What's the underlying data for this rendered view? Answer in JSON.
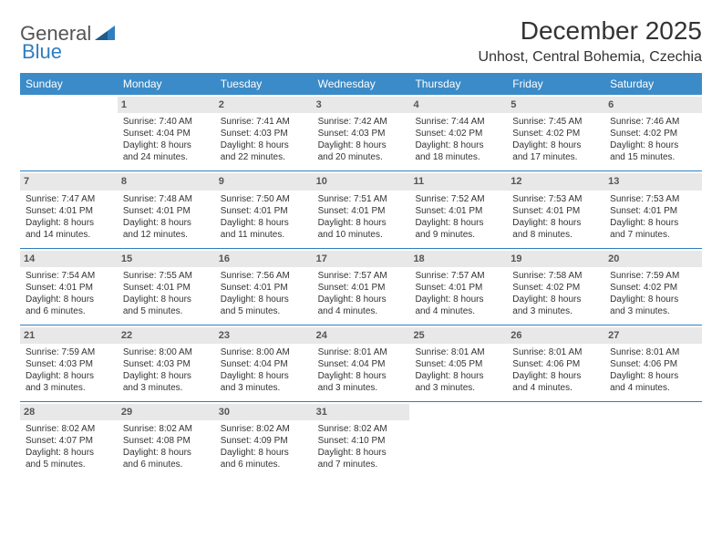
{
  "logo": {
    "text1": "General",
    "text2": "Blue"
  },
  "title": "December 2025",
  "location": "Unhost, Central Bohemia, Czechia",
  "colors": {
    "header_bg": "#3b8bc8",
    "header_text": "#ffffff",
    "daynum_bg": "#e8e8e8",
    "week_border": "#2f7ec0",
    "logo_blue": "#2f7ec0",
    "body_text": "#333333"
  },
  "day_names": [
    "Sunday",
    "Monday",
    "Tuesday",
    "Wednesday",
    "Thursday",
    "Friday",
    "Saturday"
  ],
  "weeks": [
    [
      {
        "n": "",
        "sr": "",
        "ss": "",
        "dl": ""
      },
      {
        "n": "1",
        "sr": "Sunrise: 7:40 AM",
        "ss": "Sunset: 4:04 PM",
        "dl": "Daylight: 8 hours and 24 minutes."
      },
      {
        "n": "2",
        "sr": "Sunrise: 7:41 AM",
        "ss": "Sunset: 4:03 PM",
        "dl": "Daylight: 8 hours and 22 minutes."
      },
      {
        "n": "3",
        "sr": "Sunrise: 7:42 AM",
        "ss": "Sunset: 4:03 PM",
        "dl": "Daylight: 8 hours and 20 minutes."
      },
      {
        "n": "4",
        "sr": "Sunrise: 7:44 AM",
        "ss": "Sunset: 4:02 PM",
        "dl": "Daylight: 8 hours and 18 minutes."
      },
      {
        "n": "5",
        "sr": "Sunrise: 7:45 AM",
        "ss": "Sunset: 4:02 PM",
        "dl": "Daylight: 8 hours and 17 minutes."
      },
      {
        "n": "6",
        "sr": "Sunrise: 7:46 AM",
        "ss": "Sunset: 4:02 PM",
        "dl": "Daylight: 8 hours and 15 minutes."
      }
    ],
    [
      {
        "n": "7",
        "sr": "Sunrise: 7:47 AM",
        "ss": "Sunset: 4:01 PM",
        "dl": "Daylight: 8 hours and 14 minutes."
      },
      {
        "n": "8",
        "sr": "Sunrise: 7:48 AM",
        "ss": "Sunset: 4:01 PM",
        "dl": "Daylight: 8 hours and 12 minutes."
      },
      {
        "n": "9",
        "sr": "Sunrise: 7:50 AM",
        "ss": "Sunset: 4:01 PM",
        "dl": "Daylight: 8 hours and 11 minutes."
      },
      {
        "n": "10",
        "sr": "Sunrise: 7:51 AM",
        "ss": "Sunset: 4:01 PM",
        "dl": "Daylight: 8 hours and 10 minutes."
      },
      {
        "n": "11",
        "sr": "Sunrise: 7:52 AM",
        "ss": "Sunset: 4:01 PM",
        "dl": "Daylight: 8 hours and 9 minutes."
      },
      {
        "n": "12",
        "sr": "Sunrise: 7:53 AM",
        "ss": "Sunset: 4:01 PM",
        "dl": "Daylight: 8 hours and 8 minutes."
      },
      {
        "n": "13",
        "sr": "Sunrise: 7:53 AM",
        "ss": "Sunset: 4:01 PM",
        "dl": "Daylight: 8 hours and 7 minutes."
      }
    ],
    [
      {
        "n": "14",
        "sr": "Sunrise: 7:54 AM",
        "ss": "Sunset: 4:01 PM",
        "dl": "Daylight: 8 hours and 6 minutes."
      },
      {
        "n": "15",
        "sr": "Sunrise: 7:55 AM",
        "ss": "Sunset: 4:01 PM",
        "dl": "Daylight: 8 hours and 5 minutes."
      },
      {
        "n": "16",
        "sr": "Sunrise: 7:56 AM",
        "ss": "Sunset: 4:01 PM",
        "dl": "Daylight: 8 hours and 5 minutes."
      },
      {
        "n": "17",
        "sr": "Sunrise: 7:57 AM",
        "ss": "Sunset: 4:01 PM",
        "dl": "Daylight: 8 hours and 4 minutes."
      },
      {
        "n": "18",
        "sr": "Sunrise: 7:57 AM",
        "ss": "Sunset: 4:01 PM",
        "dl": "Daylight: 8 hours and 4 minutes."
      },
      {
        "n": "19",
        "sr": "Sunrise: 7:58 AM",
        "ss": "Sunset: 4:02 PM",
        "dl": "Daylight: 8 hours and 3 minutes."
      },
      {
        "n": "20",
        "sr": "Sunrise: 7:59 AM",
        "ss": "Sunset: 4:02 PM",
        "dl": "Daylight: 8 hours and 3 minutes."
      }
    ],
    [
      {
        "n": "21",
        "sr": "Sunrise: 7:59 AM",
        "ss": "Sunset: 4:03 PM",
        "dl": "Daylight: 8 hours and 3 minutes."
      },
      {
        "n": "22",
        "sr": "Sunrise: 8:00 AM",
        "ss": "Sunset: 4:03 PM",
        "dl": "Daylight: 8 hours and 3 minutes."
      },
      {
        "n": "23",
        "sr": "Sunrise: 8:00 AM",
        "ss": "Sunset: 4:04 PM",
        "dl": "Daylight: 8 hours and 3 minutes."
      },
      {
        "n": "24",
        "sr": "Sunrise: 8:01 AM",
        "ss": "Sunset: 4:04 PM",
        "dl": "Daylight: 8 hours and 3 minutes."
      },
      {
        "n": "25",
        "sr": "Sunrise: 8:01 AM",
        "ss": "Sunset: 4:05 PM",
        "dl": "Daylight: 8 hours and 3 minutes."
      },
      {
        "n": "26",
        "sr": "Sunrise: 8:01 AM",
        "ss": "Sunset: 4:06 PM",
        "dl": "Daylight: 8 hours and 4 minutes."
      },
      {
        "n": "27",
        "sr": "Sunrise: 8:01 AM",
        "ss": "Sunset: 4:06 PM",
        "dl": "Daylight: 8 hours and 4 minutes."
      }
    ],
    [
      {
        "n": "28",
        "sr": "Sunrise: 8:02 AM",
        "ss": "Sunset: 4:07 PM",
        "dl": "Daylight: 8 hours and 5 minutes."
      },
      {
        "n": "29",
        "sr": "Sunrise: 8:02 AM",
        "ss": "Sunset: 4:08 PM",
        "dl": "Daylight: 8 hours and 6 minutes."
      },
      {
        "n": "30",
        "sr": "Sunrise: 8:02 AM",
        "ss": "Sunset: 4:09 PM",
        "dl": "Daylight: 8 hours and 6 minutes."
      },
      {
        "n": "31",
        "sr": "Sunrise: 8:02 AM",
        "ss": "Sunset: 4:10 PM",
        "dl": "Daylight: 8 hours and 7 minutes."
      },
      {
        "n": "",
        "sr": "",
        "ss": "",
        "dl": ""
      },
      {
        "n": "",
        "sr": "",
        "ss": "",
        "dl": ""
      },
      {
        "n": "",
        "sr": "",
        "ss": "",
        "dl": ""
      }
    ]
  ]
}
